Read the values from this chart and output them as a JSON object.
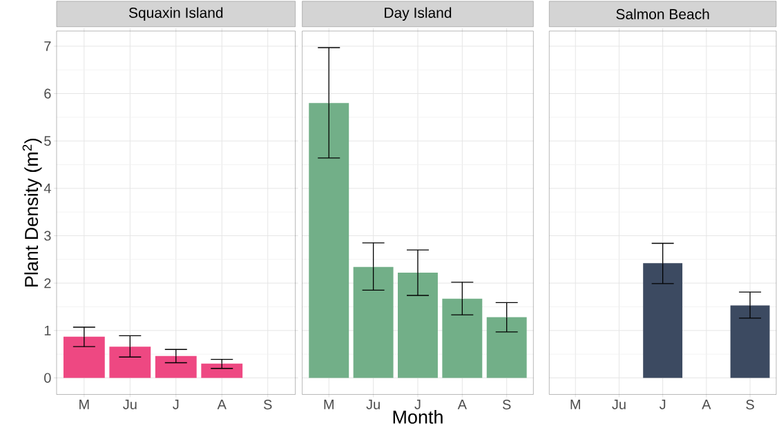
{
  "chart_data": [
    {
      "type": "bar",
      "title": "Squaxin Island",
      "ylabel": "Plant Density (m$^{2}$)",
      "categories": [
        "M",
        "Ju",
        "J",
        "A",
        "S"
      ],
      "values": [
        0.87,
        0.66,
        0.46,
        0.3,
        null
      ],
      "errors": [
        [
          0.66,
          1.07
        ],
        [
          0.44,
          0.89
        ],
        [
          0.32,
          0.6
        ],
        [
          0.2,
          0.39
        ],
        null
      ],
      "color": "#ee4882",
      "ylim": [
        -0.35,
        7.32
      ],
      "yticks": [
        0,
        1,
        2,
        3,
        4,
        5,
        6,
        7
      ],
      "grid": true
    },
    {
      "type": "bar",
      "title": "Day Island",
      "xlabel": "Month",
      "categories": [
        "M",
        "Ju",
        "J",
        "A",
        "S"
      ],
      "values": [
        5.8,
        2.34,
        2.22,
        1.67,
        1.28
      ],
      "errors": [
        [
          4.64,
          6.97
        ],
        [
          1.85,
          2.85
        ],
        [
          1.74,
          2.7
        ],
        [
          1.33,
          2.02
        ],
        [
          0.97,
          1.59
        ]
      ],
      "color": "#72af88",
      "ylim": [
        -0.35,
        7.32
      ],
      "yticks": [
        0,
        1,
        2,
        3,
        4,
        5,
        6,
        7
      ],
      "grid": true,
      "tick_labels": "x"
    },
    {
      "type": "bar",
      "title": "Salmon Beach",
      "categories": [
        "M",
        "Ju",
        "J",
        "A",
        "S"
      ],
      "values": [
        null,
        null,
        2.42,
        null,
        1.53
      ],
      "errors": [
        null,
        null,
        [
          1.99,
          2.84
        ],
        null,
        [
          1.26,
          1.81
        ]
      ],
      "color": "#3c4a61",
      "ylim": [
        -0.35,
        7.32
      ],
      "yticks": [
        0,
        1,
        2,
        3,
        4,
        5,
        6,
        7
      ],
      "grid": true,
      "tick_labels": "x"
    }
  ]
}
